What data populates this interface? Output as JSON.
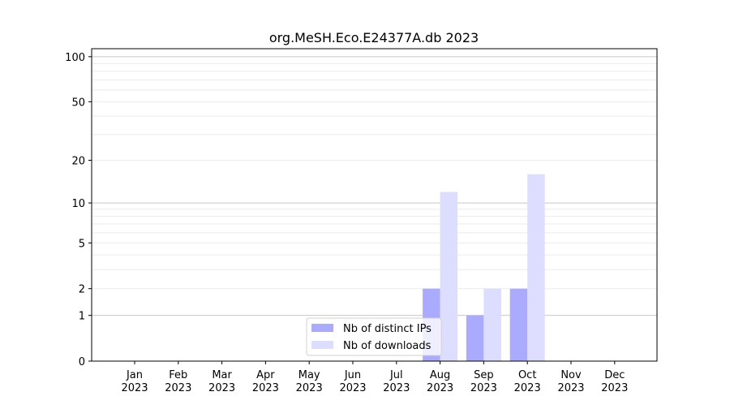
{
  "chart_data": {
    "type": "bar",
    "title": "org.MeSH.Eco.E24377A.db 2023",
    "xlabel": "",
    "ylabel": "",
    "yscale": "log10(1+y)",
    "ylim": [
      0,
      113
    ],
    "yticks": [
      0,
      1,
      2,
      5,
      10,
      20,
      50,
      100
    ],
    "grid": true,
    "legend_position": "lower center",
    "categories": [
      "Jan\n2023",
      "Feb\n2023",
      "Mar\n2023",
      "Apr\n2023",
      "May\n2023",
      "Jun\n2023",
      "Jul\n2023",
      "Aug\n2023",
      "Sep\n2023",
      "Oct\n2023",
      "Nov\n2023",
      "Dec\n2023"
    ],
    "series": [
      {
        "name": "Nb of distinct IPs",
        "color": "#aaaaff",
        "values": [
          0,
          0,
          0,
          0,
          0,
          0,
          0,
          2,
          1,
          2,
          0,
          0
        ]
      },
      {
        "name": "Nb of downloads",
        "color": "#ddddff",
        "values": [
          0,
          0,
          0,
          0,
          0,
          0,
          0,
          12,
          2,
          16,
          0,
          0
        ]
      }
    ]
  }
}
